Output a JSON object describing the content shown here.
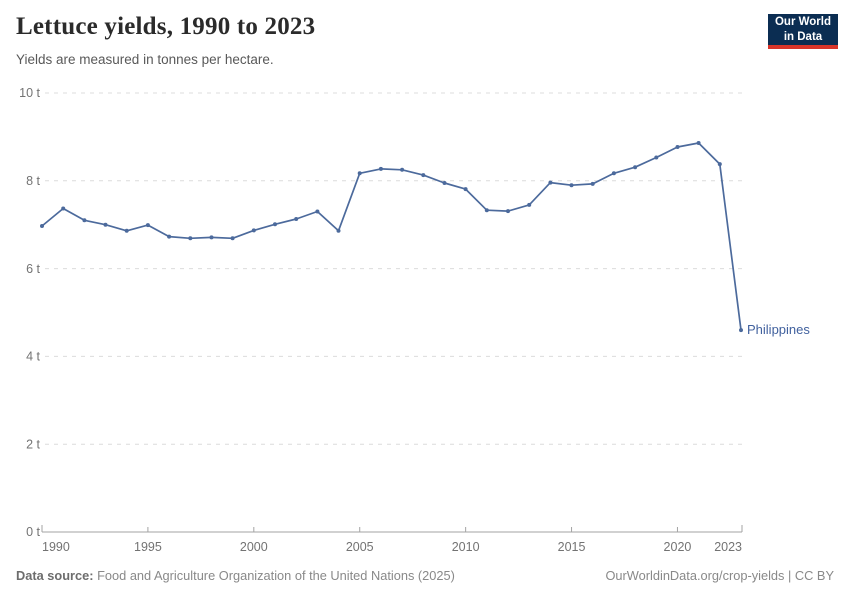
{
  "header": {
    "title": "Lettuce yields, 1990 to 2023",
    "subtitle": "Yields are measured in tonnes per hectare.",
    "logo": {
      "line1": "Our World",
      "line2": "in Data"
    }
  },
  "footer": {
    "source_label": "Data source:",
    "source_text": "Food and Agriculture Organization of the United Nations (2025)",
    "link_text": "OurWorldinData.org/crop-yields | CC BY"
  },
  "colors": {
    "line": "#4c6a9c",
    "grid": "#dcdcdc",
    "axis": "#a3a3a3",
    "tick_text": "#737373",
    "series_label_text": "#41619e",
    "logo_bg": "#0b2d52",
    "logo_red": "#d8352a"
  },
  "chart_data": {
    "type": "line",
    "title": "Lettuce yields, 1990 to 2023",
    "xlabel": "",
    "ylabel": "tonnes per hectare",
    "xlim": [
      1990,
      2023
    ],
    "ylim": [
      0,
      10
    ],
    "grid": true,
    "legend_position": "line-end-label",
    "y_ticks": [
      {
        "value": 0,
        "label": "0 t"
      },
      {
        "value": 2,
        "label": "2 t"
      },
      {
        "value": 4,
        "label": "4 t"
      },
      {
        "value": 6,
        "label": "6 t"
      },
      {
        "value": 8,
        "label": "8 t"
      },
      {
        "value": 10,
        "label": "10 t"
      }
    ],
    "x_ticks": [
      {
        "value": 1990,
        "label": "1990"
      },
      {
        "value": 1995,
        "label": "1995"
      },
      {
        "value": 2000,
        "label": "2000"
      },
      {
        "value": 2005,
        "label": "2005"
      },
      {
        "value": 2010,
        "label": "2010"
      },
      {
        "value": 2015,
        "label": "2015"
      },
      {
        "value": 2020,
        "label": "2020"
      },
      {
        "value": 2023,
        "label": "2023"
      }
    ],
    "series": [
      {
        "name": "Philippines",
        "color": "#4c6a9c",
        "x": [
          1990,
          1991,
          1992,
          1993,
          1994,
          1995,
          1996,
          1997,
          1998,
          1999,
          2000,
          2001,
          2002,
          2003,
          2004,
          2005,
          2006,
          2007,
          2008,
          2009,
          2010,
          2011,
          2012,
          2013,
          2014,
          2015,
          2016,
          2017,
          2018,
          2019,
          2020,
          2021,
          2022,
          2023
        ],
        "values": [
          6.97,
          7.37,
          7.1,
          7.0,
          6.86,
          6.99,
          6.73,
          6.69,
          6.71,
          6.69,
          6.87,
          7.01,
          7.13,
          7.3,
          6.86,
          8.17,
          8.27,
          8.25,
          8.13,
          7.95,
          7.81,
          7.33,
          7.31,
          7.45,
          7.96,
          7.9,
          7.93,
          8.17,
          8.31,
          8.53,
          8.77,
          8.86,
          8.38,
          4.6
        ]
      }
    ]
  }
}
